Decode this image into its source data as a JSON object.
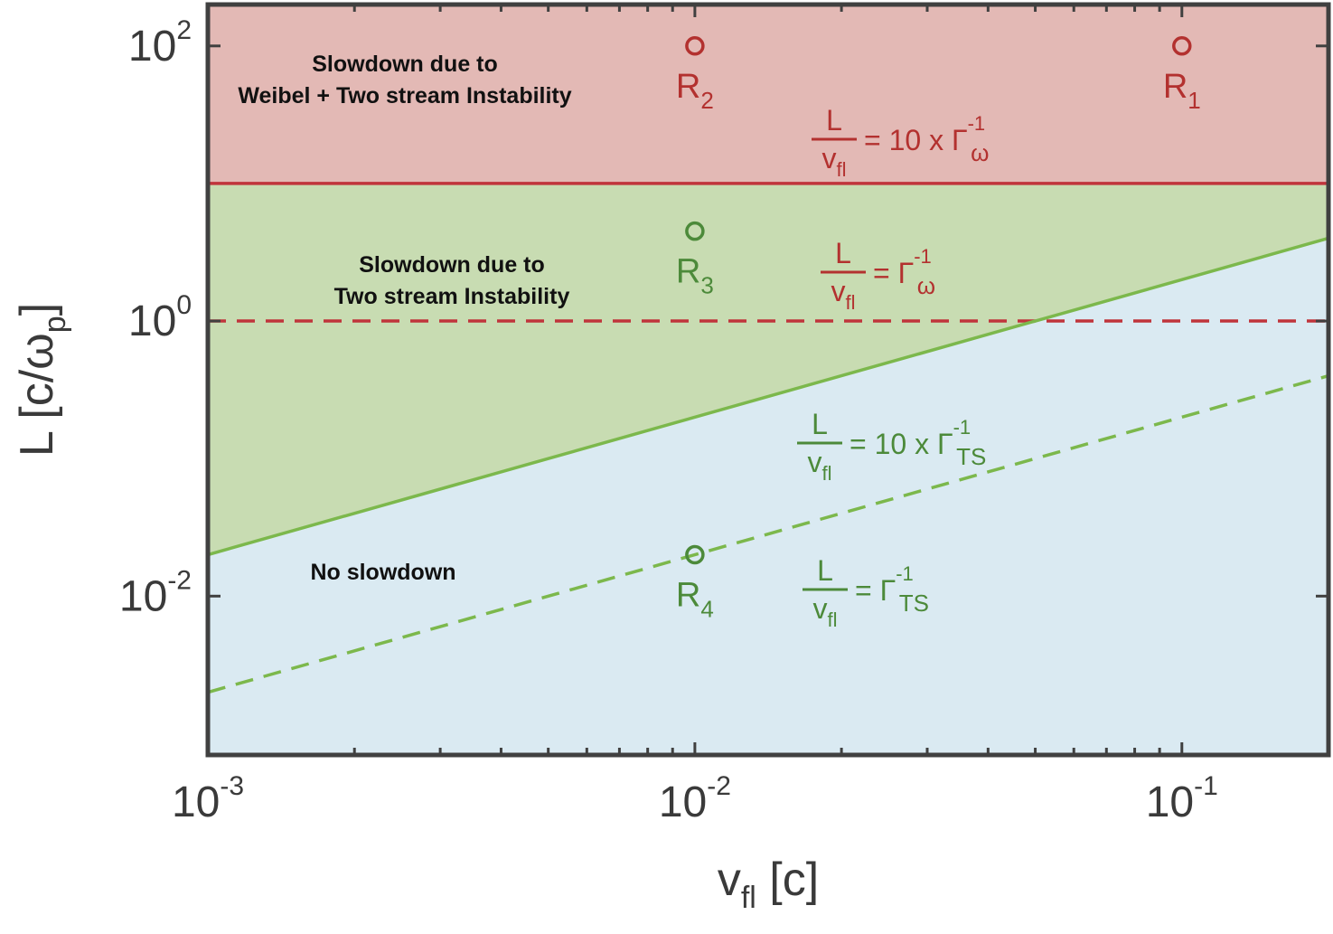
{
  "chart_data": {
    "type": "line",
    "x_scale": "log",
    "y_scale": "log",
    "xlim": [
      0.001,
      0.2
    ],
    "ylim": [
      0.0007,
      200
    ],
    "xlabel": {
      "main": "v",
      "sub": "fl",
      "unit": " [c]"
    },
    "ylabel": {
      "main": "L [c/ω",
      "sub": "p",
      "close": "]"
    },
    "xticks": [
      {
        "value": 0.001,
        "base": "10",
        "exp": "-3"
      },
      {
        "value": 0.01,
        "base": "10",
        "exp": "-2"
      },
      {
        "value": 0.1,
        "base": "10",
        "exp": "-1"
      }
    ],
    "yticks": [
      {
        "value": 0.01,
        "base": "10",
        "exp": "-2"
      },
      {
        "value": 1,
        "base": "10",
        "exp": "0"
      },
      {
        "value": 100,
        "base": "10",
        "exp": "2"
      }
    ],
    "grid": false,
    "colors": {
      "red_region": "#e3b9b5",
      "green_region": "#c8dcb2",
      "blue_region": "#daeaf2",
      "red_line": "#c0343b",
      "green_line": "#7cb84c",
      "red_text": "#b3312f",
      "green_text": "#4c8a3a",
      "frame": "#404040"
    },
    "series": [
      {
        "style": "solid",
        "color": "red",
        "points": [
          [
            0.001,
            10
          ],
          [
            0.2,
            10
          ]
        ]
      },
      {
        "style": "dashed",
        "color": "red",
        "points": [
          [
            0.001,
            1
          ],
          [
            0.2,
            1
          ]
        ]
      },
      {
        "style": "solid",
        "color": "green",
        "points": [
          [
            0.001,
            0.02
          ],
          [
            0.2,
            4
          ]
        ]
      },
      {
        "style": "dashed",
        "color": "green",
        "points": [
          [
            0.001,
            0.002
          ],
          [
            0.2,
            0.4
          ]
        ]
      }
    ],
    "points": [
      {
        "x": 0.1,
        "y": 100,
        "label": "R",
        "sub": "1",
        "color": "red"
      },
      {
        "x": 0.01,
        "y": 100,
        "label": "R",
        "sub": "2",
        "color": "red"
      },
      {
        "x": 0.01,
        "y": 4.5,
        "label": "R",
        "sub": "3",
        "color": "green"
      },
      {
        "x": 0.01,
        "y": 0.02,
        "label": "R",
        "sub": "4",
        "color": "green"
      }
    ],
    "regions": [
      {
        "lines": [
          "Slowdown due to",
          "Weibel + Two stream Instability"
        ]
      },
      {
        "lines": [
          "Slowdown due to",
          "Two stream Instability"
        ]
      },
      {
        "lines": [
          "No slowdown"
        ]
      }
    ],
    "annotations": [
      {
        "num": "L",
        "den": "v",
        "den_sub": "fl",
        "rhs": "= 10 x Γ",
        "rhs_sub": "ω",
        "rhs_sup": "-1",
        "color": "red"
      },
      {
        "num": "L",
        "den": "v",
        "den_sub": "fl",
        "rhs": "=  Γ",
        "rhs_sub": "ω",
        "rhs_sup": "-1",
        "color": "red"
      },
      {
        "num": "L",
        "den": "v",
        "den_sub": "fl",
        "rhs": "= 10 x Γ",
        "rhs_sub": "TS",
        "rhs_sup": "-1",
        "color": "green"
      },
      {
        "num": "L",
        "den": "v",
        "den_sub": "fl",
        "rhs": "=  Γ",
        "rhs_sub": "TS",
        "rhs_sup": "-1",
        "color": "green"
      }
    ]
  }
}
